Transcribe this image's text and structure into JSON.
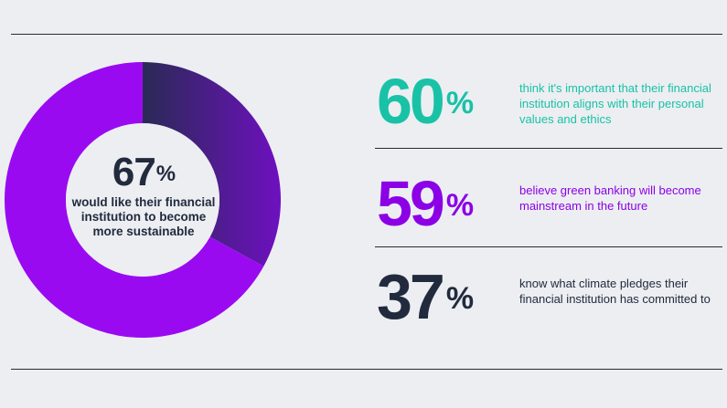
{
  "chart_data": {
    "type": "pie",
    "variant": "donut",
    "slices": [
      {
        "label": "would like their financial institution to become more sustainable",
        "value": 67,
        "color": "#9a0af0"
      },
      {
        "label": "",
        "value": 33,
        "color": "#5a1a9e"
      }
    ],
    "center_value": "67",
    "center_caption": "would like their financial institution to become more sustainable"
  },
  "stats": [
    {
      "value": "60",
      "text": "think it's important that their financial institution aligns with their personal values and ethics",
      "color": "#19c2a6"
    },
    {
      "value": "59",
      "text": "believe green banking will become mainstream in the future",
      "color": "#8c00e6"
    },
    {
      "value": "37",
      "text": "know what climate pledges their financial institution has committed to",
      "color": "#222b3d"
    }
  ],
  "percent_sign": "%"
}
